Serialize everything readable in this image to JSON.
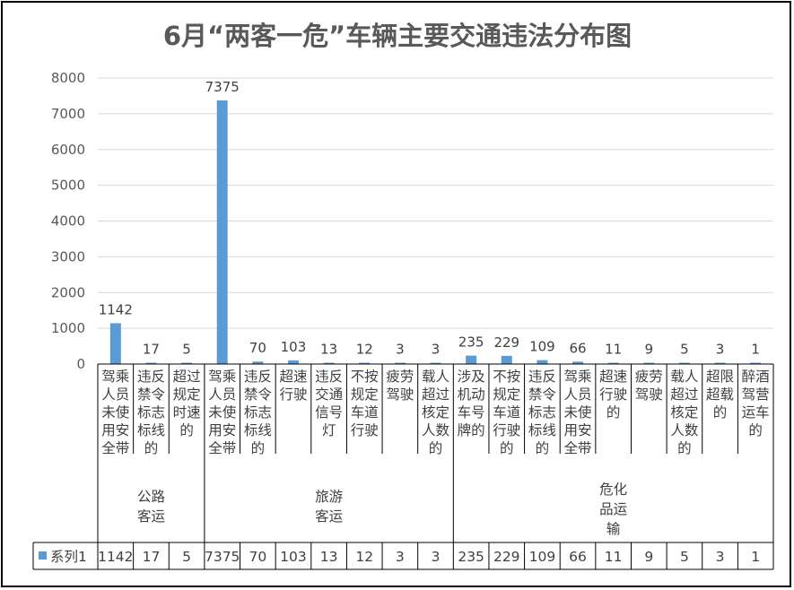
{
  "chart_data": {
    "type": "bar",
    "title": "6月“两客一危”车辆主要交通违法分布图",
    "ylim": [
      0,
      8000
    ],
    "yticks": [
      0,
      1000,
      2000,
      3000,
      4000,
      5000,
      6000,
      7000,
      8000
    ],
    "grid": true,
    "legend": "data-table",
    "bar_color": "#5B9BD5",
    "groups": [
      {
        "label": [
          "公路",
          "客运"
        ],
        "start": 0,
        "end": 3
      },
      {
        "label": [
          "旅游",
          "客运"
        ],
        "start": 3,
        "end": 10
      },
      {
        "label": [
          "危化",
          "品运",
          "输"
        ],
        "start": 10,
        "end": 19
      }
    ],
    "categories": [
      [
        "驾乘",
        "人员",
        "未使",
        "用安",
        "全带"
      ],
      [
        "违反",
        "禁令",
        "标志",
        "标线",
        "的"
      ],
      [
        "超过",
        "规定",
        "时速",
        "的"
      ],
      [
        "驾乘",
        "人员",
        "未使",
        "用安",
        "全带"
      ],
      [
        "违反",
        "禁令",
        "标志",
        "标线",
        "的"
      ],
      [
        "超速",
        "行驶"
      ],
      [
        "违反",
        "交通",
        "信号",
        "灯"
      ],
      [
        "不按",
        "规定",
        "车道",
        "行驶"
      ],
      [
        "疲劳",
        "驾驶"
      ],
      [
        "载人",
        "超过",
        "核定",
        "人数",
        "的"
      ],
      [
        "涉及",
        "机动",
        "车号",
        "牌的"
      ],
      [
        "不按",
        "规定",
        "车道",
        "行驶",
        "的"
      ],
      [
        "违反",
        "禁令",
        "标志",
        "标线",
        "的"
      ],
      [
        "驾乘",
        "人员",
        "未使",
        "用安",
        "全带"
      ],
      [
        "超速",
        "行驶",
        "的"
      ],
      [
        "疲劳",
        "驾驶"
      ],
      [
        "载人",
        "超过",
        "核定",
        "人数",
        "的"
      ],
      [
        "超限",
        "超载",
        "的"
      ],
      [
        "醉酒",
        "驾营",
        "运车",
        "的"
      ]
    ],
    "series": [
      {
        "name": "系列1",
        "values": [
          1142,
          17,
          5,
          7375,
          70,
          103,
          13,
          12,
          3,
          3,
          235,
          229,
          109,
          66,
          11,
          9,
          5,
          3,
          1
        ]
      }
    ]
  }
}
